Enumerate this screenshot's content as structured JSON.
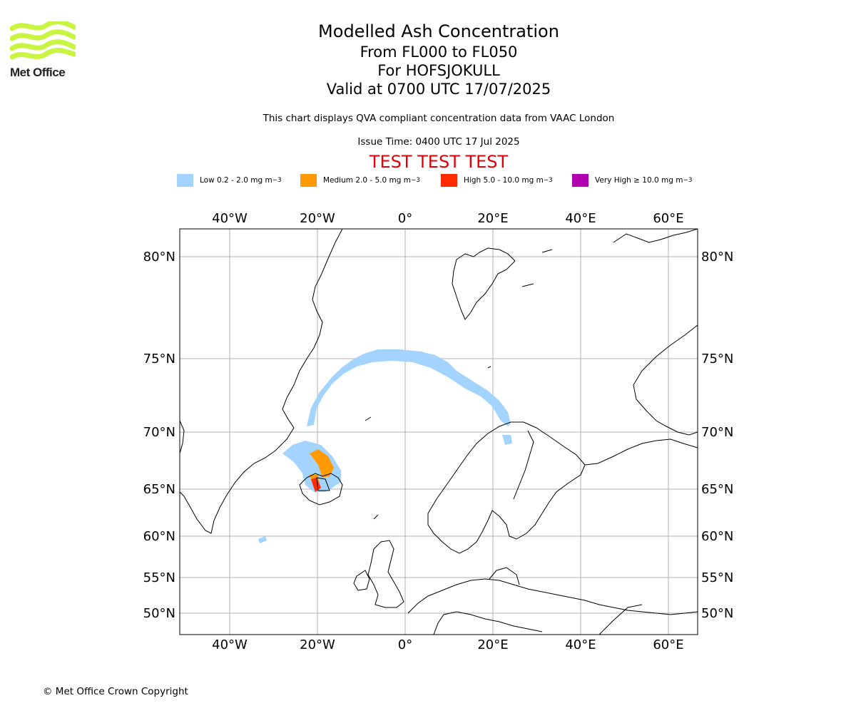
{
  "logo": {
    "name": "Met Office",
    "color": "#c8f542"
  },
  "title": {
    "main": "Modelled Ash Concentration",
    "levels": "From FL000 to FL050",
    "volcano": "For HOFSJOKULL",
    "valid": "Valid at 0700 UTC 17/07/2025"
  },
  "subtitle": "This chart displays QVA compliant concentration data from VAAC London",
  "issue_time": "Issue Time: 0400 UTC 17 Jul 2025",
  "test_banner": "TEST TEST TEST",
  "legend": [
    {
      "label": "Low 0.2 - 2.0 mg m",
      "sup": "−3",
      "color": "#a2d4ff"
    },
    {
      "label": "Medium 2.0 - 5.0 mg m",
      "sup": "−3",
      "color": "#ff9a05"
    },
    {
      "label": "High 5.0 - 10.0 mg m",
      "sup": "−3",
      "color": "#ff2b00"
    },
    {
      "label": "Very High  ≥  10.0 mg m",
      "sup": "−3",
      "color": "#b000b0"
    }
  ],
  "map": {
    "lon_ticks": [
      "40°W",
      "20°W",
      "0°",
      "20°E",
      "40°E",
      "60°E"
    ],
    "lat_ticks": [
      "80°N",
      "75°N",
      "70°N",
      "65°N",
      "60°N",
      "55°N",
      "50°N"
    ]
  },
  "footer": "© Met Office Crown Copyright"
}
